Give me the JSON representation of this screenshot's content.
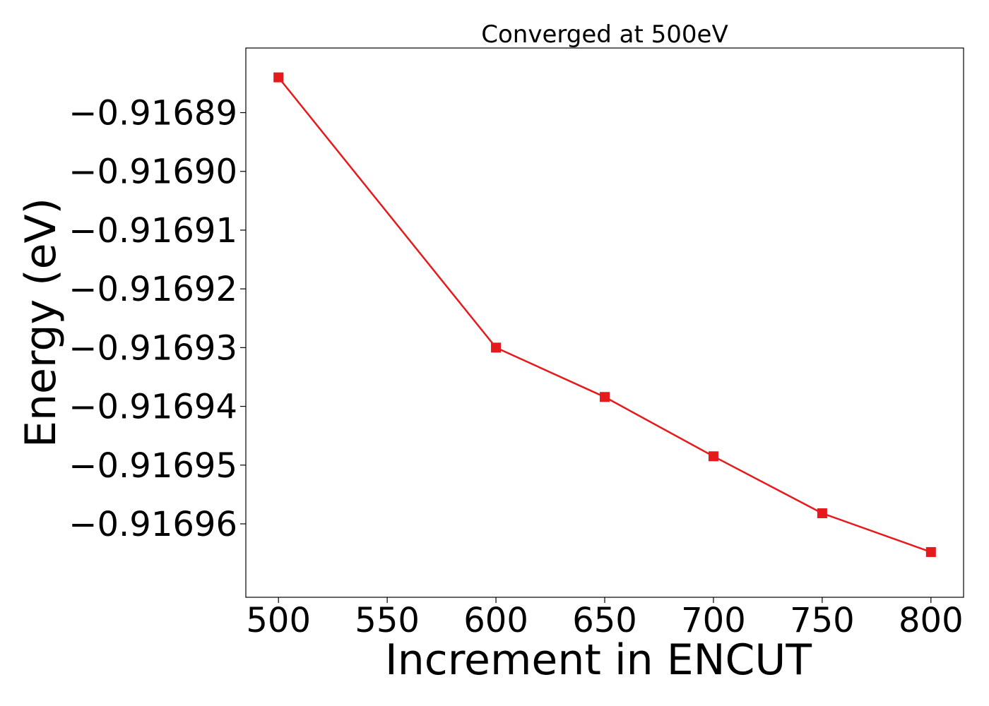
{
  "chart_data": {
    "type": "line",
    "title": "Converged at 500eV",
    "xlabel": "Increment in ENCUT",
    "ylabel": "Energy (eV)",
    "x": [
      500,
      600,
      650,
      700,
      750,
      800
    ],
    "series": [
      {
        "values": [
          -0.916884,
          -0.91693,
          -0.9169384,
          -0.9169485,
          -0.9169582,
          -0.9169648
        ],
        "color": "#e41a1c",
        "marker": "square"
      }
    ],
    "xticks": [
      500,
      550,
      600,
      650,
      700,
      750,
      800
    ],
    "xtick_labels": [
      "500",
      "550",
      "600",
      "650",
      "700",
      "750",
      "800"
    ],
    "yticks": [
      -0.91689,
      -0.9169,
      -0.91691,
      -0.91692,
      -0.91693,
      -0.91694,
      -0.91695,
      -0.91696
    ],
    "ytick_labels": [
      "−0.91689",
      "−0.91690",
      "−0.91691",
      "−0.91692",
      "−0.91693",
      "−0.91694",
      "−0.91695",
      "−0.91696"
    ],
    "xlim": [
      485,
      815
    ],
    "ylim": [
      -0.9169725,
      -0.916879
    ],
    "grid": false,
    "legend": "none"
  }
}
